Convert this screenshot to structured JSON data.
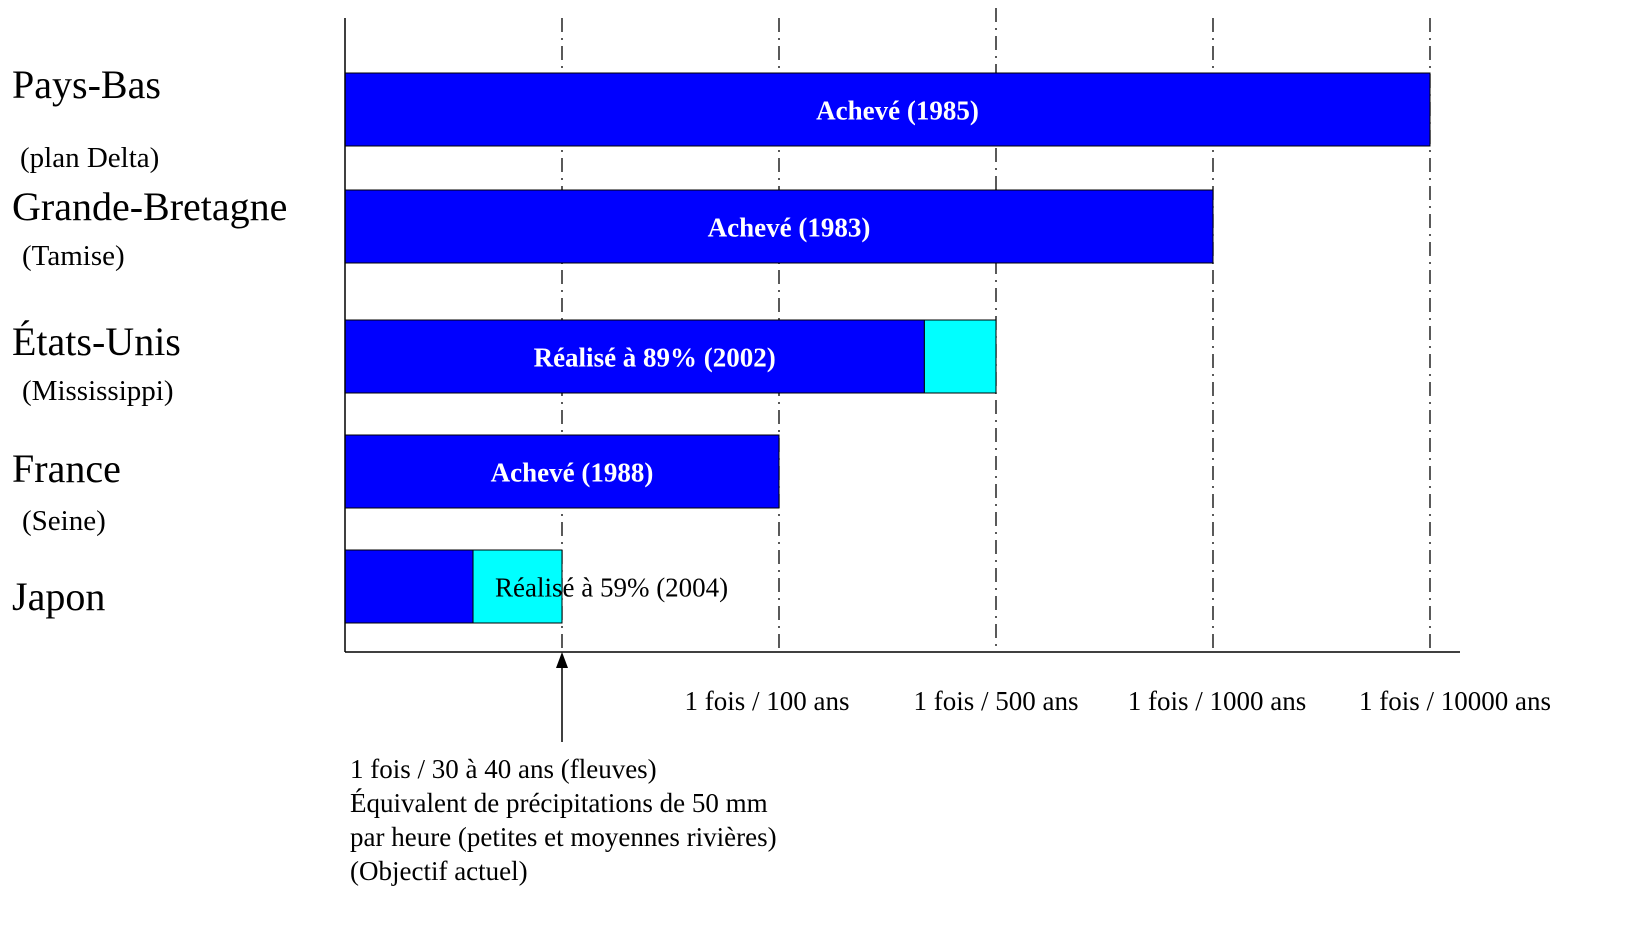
{
  "chart_data": {
    "type": "bar",
    "orientation": "horizontal",
    "x_scale": "categorical",
    "x_ticks": [
      "",
      "1 fois / 100 ans",
      "1 fois / 500 ans",
      "1 fois / 1000 ans",
      "1 fois / 10000 ans"
    ],
    "rows": [
      {
        "country": "Pays-Bas",
        "region": "(plan Delta)",
        "target_tick": 4,
        "progress": 1.0,
        "label": "Achevé (1985)",
        "label_style": "bold-inside"
      },
      {
        "country": "Grande-Bretagne",
        "region": "(Tamise)",
        "target_tick": 3,
        "progress": 1.0,
        "label": "Achevé (1983)",
        "label_style": "bold-inside"
      },
      {
        "country": "États-Unis",
        "region": "(Mississippi)",
        "target_tick": 2,
        "progress": 0.89,
        "label": "Réalisé à 89% (2002)",
        "label_style": "bold-inside"
      },
      {
        "country": "France",
        "region": "(Seine)",
        "target_tick": 1,
        "progress": 1.0,
        "label": "Achevé (1988)",
        "label_style": "bold-inside"
      },
      {
        "country": "Japon",
        "region": "",
        "target_tick": 0,
        "progress": 0.59,
        "label": "Réalisé à 59% (2004)",
        "label_style": "plain-over"
      }
    ],
    "colors": {
      "done": "#0000ff",
      "remaining": "#00ffff",
      "label_on_bar": "#ffffff",
      "axis": "#000000"
    },
    "gridlines": "dash-dot vertical",
    "annotation": {
      "tick": 0,
      "lines": [
        "1 fois / 30 à 40 ans (fleuves)",
        "Équivalent de précipitations de 50 mm",
        "par heure (petites et moyennes rivières)",
        "(Objectif actuel)"
      ]
    }
  }
}
